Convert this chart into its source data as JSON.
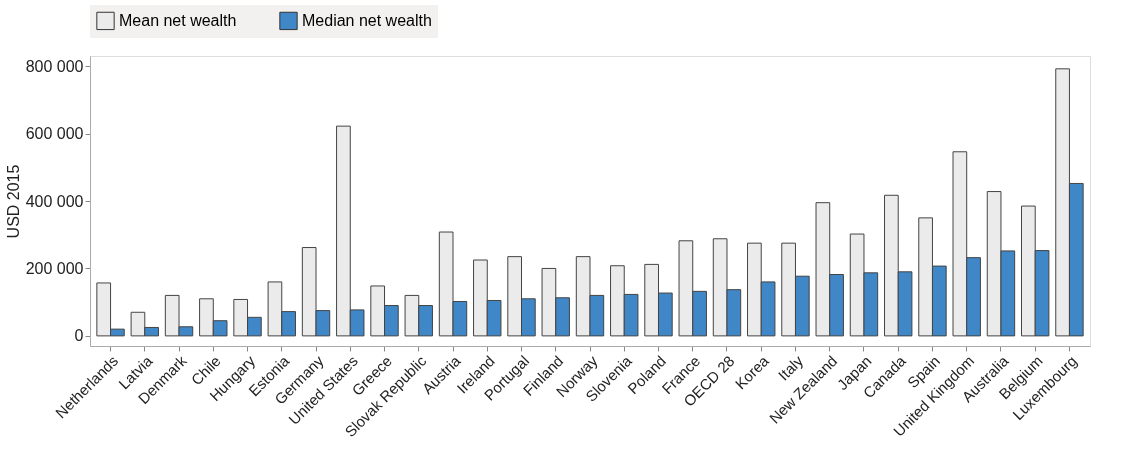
{
  "chart_data": {
    "type": "bar",
    "ylabel": "USD 2015",
    "categories": [
      "Netherlands",
      "Latvia",
      "Denmark",
      "Chile",
      "Hungary",
      "Estonia",
      "Germany",
      "United States",
      "Greece",
      "Slovak Republic",
      "Austria",
      "Ireland",
      "Portugal",
      "Finland",
      "Norway",
      "Slovenia",
      "Poland",
      "France",
      "OECD 28",
      "Korea",
      "Italy",
      "New Zealand",
      "Japan",
      "Canada",
      "Spain",
      "United Kingdom",
      "Australia",
      "Belgium",
      "Luxembourg"
    ],
    "series": [
      {
        "name": "Mean net wealth",
        "color": "#ebebeb",
        "values": [
          157000,
          70000,
          120000,
          110000,
          108000,
          160000,
          262000,
          622000,
          148000,
          120000,
          308000,
          225000,
          235000,
          200000,
          235000,
          208000,
          212000,
          282000,
          288000,
          275000,
          275000,
          395000,
          302000,
          417000,
          350000,
          546000,
          428000,
          385000,
          792000
        ]
      },
      {
        "name": "Median net wealth",
        "color": "#3f87c6",
        "values": [
          20000,
          25000,
          27000,
          45000,
          55000,
          72000,
          75000,
          77000,
          90000,
          90000,
          102000,
          105000,
          110000,
          113000,
          120000,
          123000,
          127000,
          132000,
          137000,
          160000,
          177000,
          182000,
          187000,
          190000,
          207000,
          232000,
          252000,
          253000,
          452000
        ]
      }
    ],
    "ylim": [
      -30000,
      830000
    ],
    "yticks": [
      0,
      {
        "value": 200000,
        "label": "200 000"
      },
      {
        "value": 400000,
        "label": "400 000"
      },
      {
        "value": 600000,
        "label": "600 000"
      },
      {
        "value": 800000,
        "label": "800 000"
      }
    ],
    "grid": false,
    "legend": "top"
  }
}
